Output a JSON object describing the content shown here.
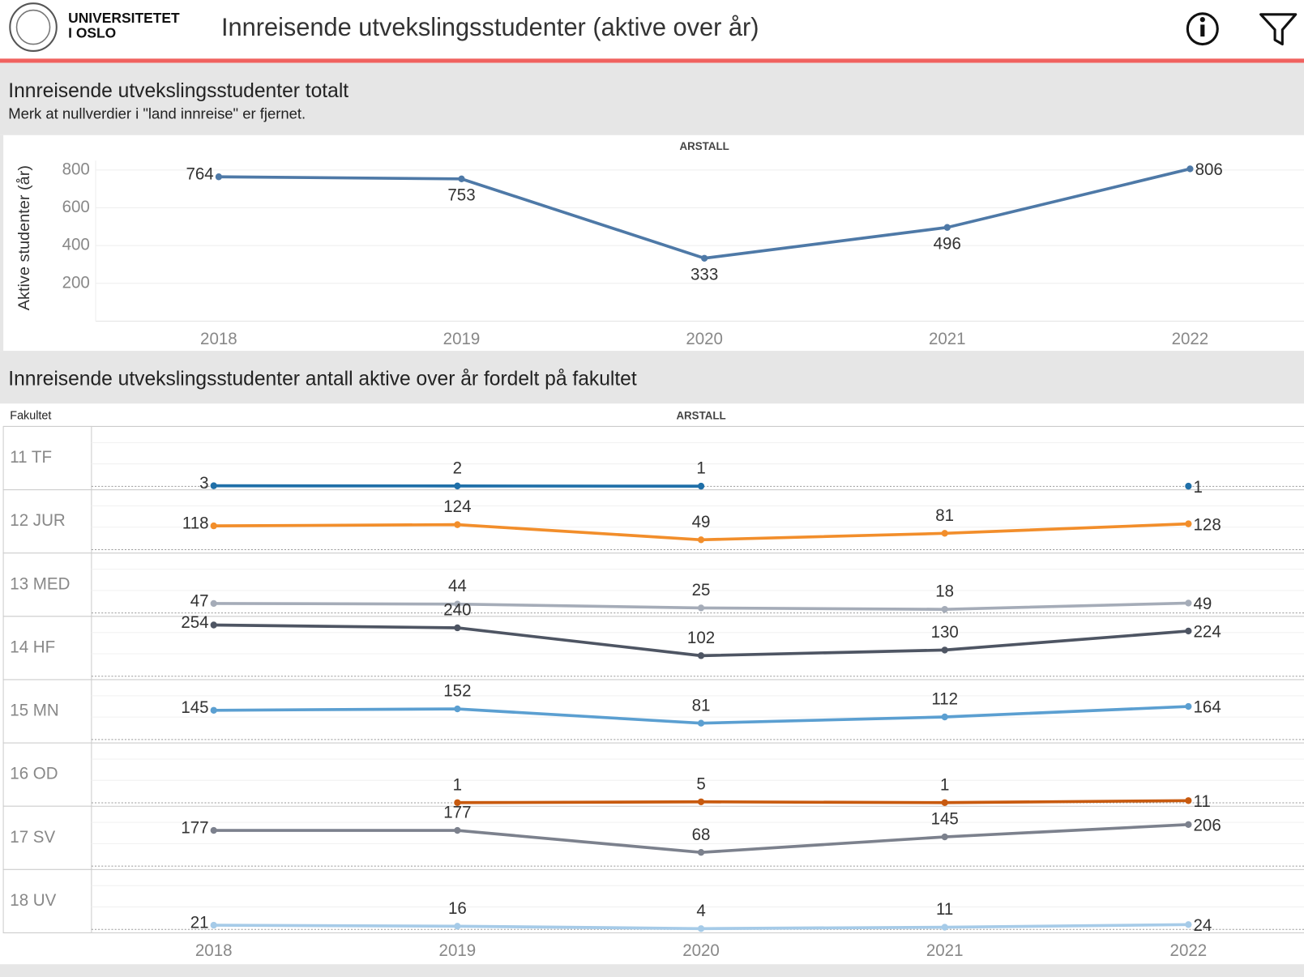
{
  "header": {
    "logo_line1": "UNIVERSITETET",
    "logo_line2": "I OSLO",
    "title": "Innreisende utvekslingsstudenter (aktive over år)"
  },
  "chart_data": [
    {
      "type": "line",
      "title": "Innreisende utvekslingsstudenter totalt",
      "subtitle": "Merk at nullverdier i \"land innreise\" er fjernet.",
      "xlabel": "ARSTALL",
      "ylabel": "Aktive studenter (år)",
      "categories": [
        "2018",
        "2019",
        "2020",
        "2021",
        "2022"
      ],
      "series": [
        {
          "name": "Totalt",
          "color": "#4e79a7",
          "values": [
            764,
            753,
            333,
            496,
            806
          ]
        }
      ],
      "ylim": [
        0,
        850
      ],
      "yticks": [
        200,
        400,
        600,
        800
      ],
      "grid": true
    },
    {
      "type": "small-multiples-line",
      "title": "Innreisende utvekslingsstudenter antall aktive over år fordelt på fakultet",
      "xlabel": "ARSTALL",
      "row_header": "Fakultet",
      "categories": [
        "2018",
        "2019",
        "2020",
        "2021",
        "2022"
      ],
      "ylim": [
        0,
        280
      ],
      "series": [
        {
          "name": "11 TF",
          "color": "#1f6fa8",
          "values": [
            3,
            2,
            1,
            null,
            1
          ]
        },
        {
          "name": "12 JUR",
          "color": "#f28e2b",
          "values": [
            118,
            124,
            49,
            81,
            128
          ]
        },
        {
          "name": "13 MED",
          "color": "#a5acb8",
          "values": [
            47,
            44,
            25,
            18,
            49
          ]
        },
        {
          "name": "14 HF",
          "color": "#4e5563",
          "values": [
            254,
            240,
            102,
            130,
            224
          ]
        },
        {
          "name": "15 MN",
          "color": "#5b9fd1",
          "values": [
            145,
            152,
            81,
            112,
            164
          ]
        },
        {
          "name": "16 OD",
          "color": "#c85a0f",
          "values": [
            null,
            1,
            5,
            1,
            11
          ]
        },
        {
          "name": "17 SV",
          "color": "#7c818d",
          "values": [
            177,
            177,
            68,
            145,
            206
          ]
        },
        {
          "name": "18 UV",
          "color": "#a6cbe8",
          "values": [
            21,
            16,
            4,
            11,
            24
          ]
        }
      ]
    }
  ]
}
